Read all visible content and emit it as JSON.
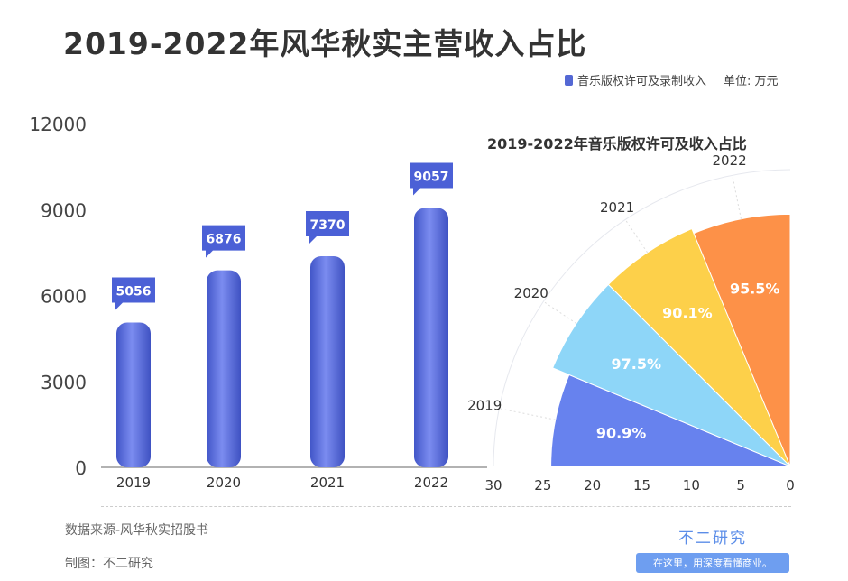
{
  "title": "2019-2022年风华秋实主营收入占比",
  "legend": {
    "label": "音乐版权许可及录制收入",
    "unit": "单位: 万元",
    "color": "#5468d4"
  },
  "chart_data": [
    {
      "type": "bar",
      "categories": [
        "2019",
        "2020",
        "2021",
        "2022"
      ],
      "values": [
        5056,
        6876,
        7370,
        9057
      ],
      "series": [
        {
          "name": "音乐版权许可及录制收入",
          "values": [
            5056,
            6876,
            7370,
            9057
          ]
        }
      ],
      "ylim": [
        0,
        12000
      ],
      "yticks": [
        "0",
        "3000",
        "6000",
        "9000",
        "12000"
      ],
      "grid": false,
      "legend_position": "top-right",
      "color": "#5468d4"
    },
    {
      "type": "polar-bar",
      "title": "2019-2022年音乐版权许可及收入占比",
      "categories": [
        "2019",
        "2020",
        "2021",
        "2022"
      ],
      "labels": [
        "90.9%",
        "97.5%",
        "90.1%",
        "95.5%"
      ],
      "radius_values": [
        24.2,
        26,
        26,
        25.5
      ],
      "rlim": [
        0,
        30
      ],
      "rticks": [
        "30",
        "25",
        "20",
        "15",
        "10",
        "5",
        "0"
      ],
      "colors": [
        "#6782ee",
        "#8ed6f8",
        "#fdd04a",
        "#fd9148"
      ]
    }
  ],
  "footer": {
    "source": "数据来源-风华秋实招股书",
    "maker": "制图：不二研究",
    "brand": "不二研究",
    "tagline": "在这里，用深度看懂商业。"
  }
}
